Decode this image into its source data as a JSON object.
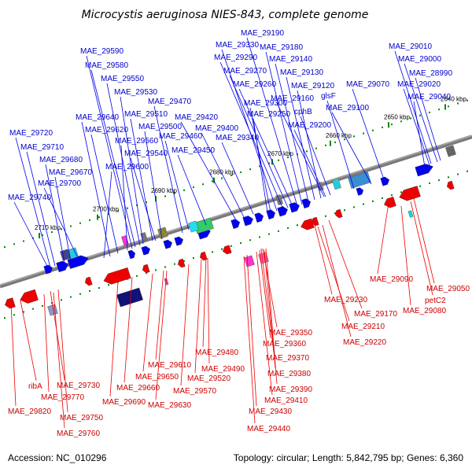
{
  "header": {
    "title": "Microcystis aeruginosa NIES-843, complete genome"
  },
  "footer": {
    "accession": "Accession: NC_010296",
    "summary": "Topology: circular; Length: 5,842,795 bp; Genes: 6,360"
  },
  "colors": {
    "forward": "#0000ee",
    "reverse": "#ee0000",
    "backbone": "#7a7a7a",
    "tick": "#008800",
    "sample_features": [
      "#ff33cc",
      "#3366cc",
      "#66cc33",
      "#22ccdd",
      "#999999",
      "#222288"
    ]
  },
  "kbp_ticks": [
    "2640 kbp",
    "2650 kbp",
    "2660 kbp",
    "2670 kbp",
    "2680 kbp",
    "2690 kbp",
    "2700 kbp",
    "2710 kbp"
  ],
  "forward_labels": [
    "MAE_29590",
    "MAE_29580",
    "MAE_29550",
    "MAE_29530",
    "MAE_29470",
    "MAE_29640",
    "MAE_29510",
    "MAE_29620",
    "MAE_29500",
    "MAE_29560",
    "MAE_29540",
    "MAE_29600",
    "MAE_29460",
    "MAE_29450",
    "MAE_29420",
    "MAE_29400",
    "MAE_29340",
    "MAE_29720",
    "MAE_29710",
    "MAE_29680",
    "MAE_29670",
    "MAE_29700",
    "MAE_29740",
    "MAE_29190",
    "MAE_29330",
    "MAE_29180",
    "MAE_29290",
    "MAE_29140",
    "MAE_29270",
    "MAE_29130",
    "MAE_29260",
    "MAE_29120",
    "MAE_29300",
    "MAE_29160",
    "glsF",
    "MAE_29250",
    "cphB",
    "MAE_29200",
    "MAE_29070",
    "MAE_29100",
    "MAE_29010",
    "MAE_29000",
    "MAE_28990",
    "MAE_29020",
    "MAE_29040"
  ],
  "reverse_labels": [
    "MAE_29090",
    "MAE_29050",
    "petC2",
    "MAE_29080",
    "MAE_29230",
    "MAE_29170",
    "MAE_29210",
    "MAE_29220",
    "MAE_29350",
    "MAE_29360",
    "MAE_29370",
    "MAE_29380",
    "MAE_29390",
    "MAE_29410",
    "MAE_29430",
    "MAE_29440",
    "MAE_29480",
    "MAE_29610",
    "MAE_29490",
    "MAE_29650",
    "MAE_29520",
    "MAE_29660",
    "MAE_29570",
    "MAE_29630",
    "MAE_29690",
    "ribA",
    "MAE_29730",
    "MAE_29770",
    "MAE_29820",
    "MAE_29750",
    "MAE_29760"
  ]
}
